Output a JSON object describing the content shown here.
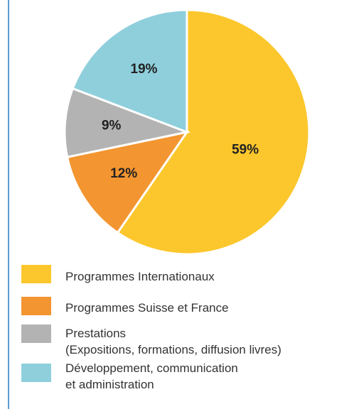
{
  "chart_data": {
    "type": "pie",
    "series": [
      {
        "name": "Programmes Internationaux",
        "color": "#fcc72c",
        "values": [
          59
        ],
        "value_labels": [
          "59%"
        ]
      },
      {
        "name": "Programmes Suisse et France",
        "color": "#f39530",
        "values": [
          12
        ],
        "value_labels": [
          "12%"
        ]
      },
      {
        "name": "Prestations\n(Expositions, formations, diffusion livres)",
        "color": "#b3b3b3",
        "values": [
          9
        ],
        "value_labels": [
          "9%"
        ]
      },
      {
        "name": "Développement, communication\net administration",
        "color": "#8fcfdc",
        "values": [
          19
        ],
        "value_labels": [
          "19%"
        ]
      }
    ]
  }
}
